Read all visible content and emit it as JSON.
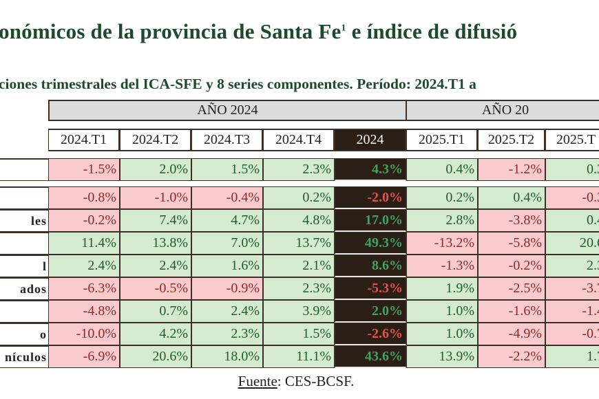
{
  "title": "onómicos de la provincia de Santa Fe",
  "title_sup": "1",
  "title_end": " e índice de difusió",
  "subtitle": "ciones trimestrales del ICA-SFE y 8 series componentes. Período: 2024.T1 a",
  "groups": [
    "AÑO 2024",
    "AÑO 20"
  ],
  "columns": [
    "2024.T1",
    "2024.T2",
    "2024.T3",
    "2024.T4",
    "2024",
    "2025.T1",
    "2025.T2",
    "2025.T"
  ],
  "rows": [
    {
      "label": "",
      "values": [
        "-1.5%",
        "2.0%",
        "1.5%",
        "2.3%",
        "4.3%",
        "0.4%",
        "-1.2%",
        "0.3"
      ]
    },
    {
      "label": "",
      "values": [
        "-0.8%",
        "-1.0%",
        "-0.4%",
        "0.2%",
        "-2.0%",
        "0.2%",
        "0.4%",
        "-0.3"
      ]
    },
    {
      "label": "les",
      "values": [
        "-0.2%",
        "7.4%",
        "4.7%",
        "4.8%",
        "17.0%",
        "2.8%",
        "-3.8%",
        "0.4"
      ]
    },
    {
      "label": "",
      "values": [
        "11.4%",
        "13.8%",
        "7.0%",
        "13.7%",
        "49.3%",
        "-13.2%",
        "-5.8%",
        "20.6"
      ]
    },
    {
      "label": "l",
      "values": [
        "2.4%",
        "2.4%",
        "1.6%",
        "2.1%",
        "8.6%",
        "-1.3%",
        "-0.2%",
        "2.3"
      ]
    },
    {
      "label": "ados",
      "values": [
        "-6.3%",
        "-0.5%",
        "-0.9%",
        "2.3%",
        "-5.3%",
        "1.9%",
        "-2.5%",
        "-3.7"
      ]
    },
    {
      "label": "",
      "values": [
        "-4.8%",
        "0.7%",
        "2.4%",
        "3.9%",
        "2.0%",
        "1.0%",
        "-1.6%",
        "-1.4"
      ]
    },
    {
      "label": "o",
      "values": [
        "-10.0%",
        "4.2%",
        "2.3%",
        "1.5%",
        "-2.6%",
        "1.0%",
        "-4.9%",
        "-0.7"
      ]
    },
    {
      "label": "nículos",
      "values": [
        "-6.9%",
        "20.6%",
        "18.0%",
        "11.1%",
        "43.6%",
        "13.9%",
        "-2.2%",
        "1.7"
      ]
    }
  ],
  "source_label": "Fuente",
  "source_text": ": CES-BCSF.",
  "colors": {
    "positive_bg": "#d5ebcf",
    "negative_bg": "#f9cbcc",
    "annual_bg": "#2b1e14",
    "title": "#1d4a2c"
  }
}
